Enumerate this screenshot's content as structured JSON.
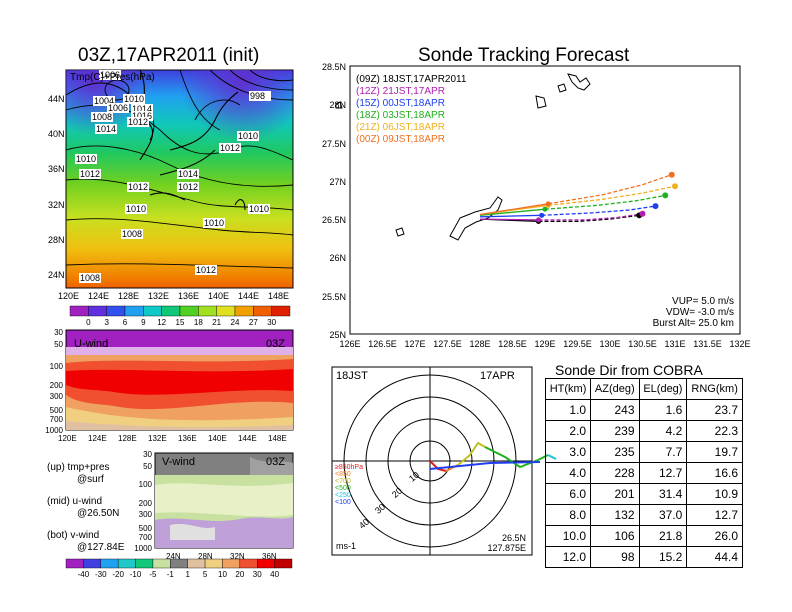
{
  "map_panel": {
    "title": "03Z,17APR2011 (init)",
    "subtitle": "Tmp(C)+Pres(hPa)",
    "lat_labels": [
      "44N",
      "40N",
      "36N",
      "32N",
      "28N",
      "24N"
    ],
    "lon_labels": [
      "120E",
      "124E",
      "128E",
      "132E",
      "136E",
      "140E",
      "144E",
      "148E"
    ],
    "pressure_labels": [
      "1006",
      "1004",
      "1010",
      "1006",
      "1008",
      "1014",
      "1016",
      "1012",
      "1014",
      "998",
      "1010",
      "1012",
      "1010",
      "1012",
      "1012",
      "1014",
      "1012",
      "1010",
      "1010",
      "1010",
      "1008",
      "1012",
      "1008"
    ],
    "colorbar_ticks": [
      "0",
      "3",
      "6",
      "9",
      "12",
      "15",
      "18",
      "21",
      "24",
      "27",
      "30"
    ],
    "colorbar_colors": [
      "#a020c0",
      "#6030e0",
      "#3050f0",
      "#20a0f0",
      "#10c8c8",
      "#10c878",
      "#50d020",
      "#a0e020",
      "#e0e020",
      "#f0a000",
      "#f06000",
      "#e02000"
    ]
  },
  "uwind_panel": {
    "label": "U-wind",
    "time": "03Z",
    "p_labels": [
      "30",
      "50",
      "100",
      "200",
      "300",
      "500",
      "700",
      "1000"
    ],
    "lon_labels": [
      "120E",
      "124E",
      "128E",
      "132E",
      "136E",
      "140E",
      "144E",
      "148E"
    ]
  },
  "vwind_panel": {
    "label": "V-wind",
    "time": "03Z",
    "p_labels": [
      "30",
      "50",
      "100",
      "200",
      "300",
      "500",
      "700",
      "1000"
    ],
    "lat_labels": [
      "24N",
      "28N",
      "32N",
      "36N"
    ],
    "colorbar_ticks": [
      "-40",
      "-30",
      "-20",
      "-10",
      "-5",
      "-1",
      "1",
      "5",
      "10",
      "20",
      "30",
      "40"
    ]
  },
  "notes": [
    "(up) tmp+pres",
    "@surf",
    "(mid) u-wind",
    "@26.50N",
    "(bot) v-wind",
    "@127.84E"
  ],
  "tracking": {
    "title": "Sonde Tracking Forecast",
    "lat_labels": [
      "28.5N",
      "28N",
      "27.5N",
      "27N",
      "26.5N",
      "26N",
      "25.5N",
      "25N"
    ],
    "lon_labels": [
      "126E",
      "126.5E",
      "127E",
      "127.5E",
      "128E",
      "128.5E",
      "129E",
      "129.5E",
      "130E",
      "130.5E",
      "131E",
      "131.5E",
      "132E"
    ],
    "legend": [
      {
        "label": "(09Z)  18JST,17APR2011",
        "color": "#000000"
      },
      {
        "label": "(12Z)  21JST,17APR",
        "color": "#b020b0"
      },
      {
        "label": "(15Z)  00JST,18APR",
        "color": "#2040f0"
      },
      {
        "label": "(18Z)  03JST,18APR",
        "color": "#20b020"
      },
      {
        "label": "(21Z)  06JST,18APR",
        "color": "#f0b020"
      },
      {
        "label": "(00Z)  09JST,18APR",
        "color": "#f07020"
      }
    ],
    "params": [
      "VUP=  5.0 m/s",
      "VDW= -3.0 m/s",
      "Burst Alt= 25.0 km"
    ]
  },
  "polar": {
    "time_left": "18JST",
    "date_right": "17APR",
    "ring_labels": [
      "10",
      "20",
      "30",
      "40"
    ],
    "legend": [
      {
        "label": "≥850hPa",
        "color": "#e02020"
      },
      {
        "label": "<850",
        "color": "#f08020"
      },
      {
        "label": "<700",
        "color": "#c0c020"
      },
      {
        "label": "<500",
        "color": "#20b020"
      },
      {
        "label": "<250",
        "color": "#20c0e0"
      },
      {
        "label": "<100",
        "color": "#2040f0"
      }
    ],
    "unit": "ms-1",
    "loc_lat": "26.5N",
    "loc_lon": "127.875E"
  },
  "sonde_table": {
    "title": "Sonde Dir from COBRA",
    "headers": [
      "HT(km)",
      "AZ(deg)",
      "EL(deg)",
      "RNG(km)"
    ],
    "rows": [
      [
        "1.0",
        "243",
        "1.6",
        "23.7"
      ],
      [
        "2.0",
        "239",
        "4.2",
        "22.3"
      ],
      [
        "3.0",
        "235",
        "7.7",
        "19.7"
      ],
      [
        "4.0",
        "228",
        "12.7",
        "16.6"
      ],
      [
        "6.0",
        "201",
        "31.4",
        "10.9"
      ],
      [
        "8.0",
        "132",
        "37.0",
        "12.7"
      ],
      [
        "10.0",
        "106",
        "21.8",
        "26.0"
      ],
      [
        "12.0",
        "98",
        "15.2",
        "44.4"
      ]
    ]
  },
  "chart_data": [
    {
      "type": "line",
      "title": "Sonde Tracking Forecast",
      "xlabel": "",
      "ylabel": "",
      "xlim": [
        126,
        132
      ],
      "ylim": [
        25,
        28.5
      ],
      "series": [
        {
          "name": "(09Z)  18JST,17APR2011",
          "color": "#000000",
          "x": [
            128.0,
            128.9,
            129.5,
            130.0,
            130.45
          ],
          "y": [
            26.5,
            26.47,
            26.47,
            26.5,
            26.55
          ]
        },
        {
          "name": "(12Z)  21JST,17APR",
          "color": "#b020b0",
          "x": [
            128.0,
            128.9,
            129.6,
            130.1,
            130.5
          ],
          "y": [
            26.5,
            26.49,
            26.49,
            26.52,
            26.57
          ]
        },
        {
          "name": "(15Z)  00JST,18APR",
          "color": "#2040f0",
          "x": [
            128.0,
            128.95,
            129.7,
            130.3,
            130.7
          ],
          "y": [
            26.53,
            26.55,
            26.58,
            26.62,
            26.67
          ]
        },
        {
          "name": "(18Z)  03JST,18APR",
          "color": "#20b020",
          "x": [
            128.0,
            129.0,
            129.8,
            130.4,
            130.85
          ],
          "y": [
            26.55,
            26.63,
            26.68,
            26.74,
            26.81
          ]
        },
        {
          "name": "(21Z)  06JST,18APR",
          "color": "#f0b020",
          "x": [
            128.0,
            129.05,
            129.9,
            130.5,
            131.0
          ],
          "y": [
            26.56,
            26.68,
            26.76,
            26.84,
            26.93
          ]
        },
        {
          "name": "(00Z)  09JST,18APR",
          "color": "#f07020",
          "x": [
            128.0,
            129.05,
            129.9,
            130.5,
            130.95
          ],
          "y": [
            26.56,
            26.7,
            26.82,
            26.95,
            27.08
          ]
        }
      ]
    },
    {
      "type": "line",
      "title": "Sonde Dir from COBRA",
      "xlabel": "HT(km)",
      "series": [
        {
          "name": "AZ(deg)",
          "x": [
            1,
            2,
            3,
            4,
            6,
            8,
            10,
            12
          ],
          "values": [
            243,
            239,
            235,
            228,
            201,
            132,
            106,
            98
          ]
        },
        {
          "name": "EL(deg)",
          "x": [
            1,
            2,
            3,
            4,
            6,
            8,
            10,
            12
          ],
          "values": [
            1.6,
            4.2,
            7.7,
            12.7,
            31.4,
            37.0,
            21.8,
            15.2
          ]
        },
        {
          "name": "RNG(km)",
          "x": [
            1,
            2,
            3,
            4,
            6,
            8,
            10,
            12
          ],
          "values": [
            23.7,
            22.3,
            19.7,
            16.6,
            10.9,
            12.7,
            26.0,
            44.4
          ]
        }
      ]
    }
  ]
}
